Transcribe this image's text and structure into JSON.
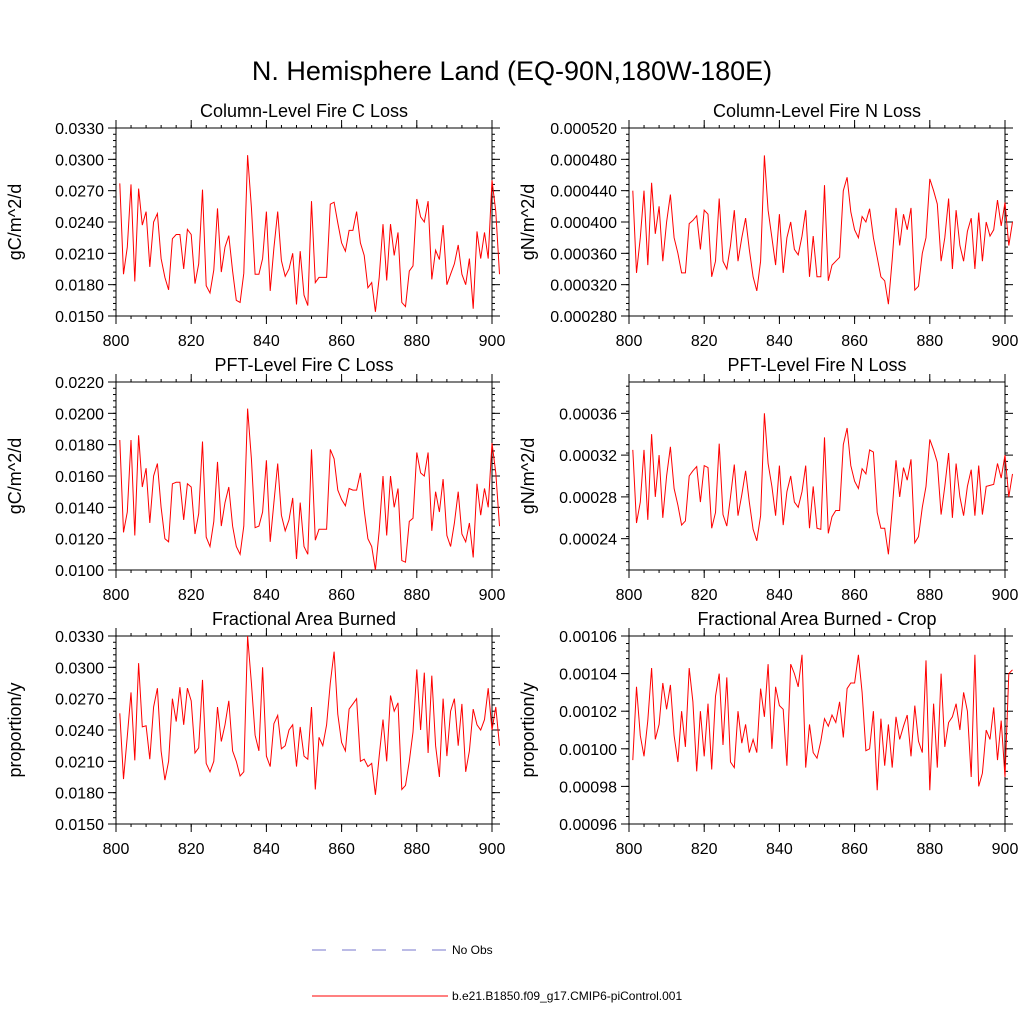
{
  "figure_title": "N. Hemisphere Land (EQ-90N,180W-180E)",
  "legend": {
    "obs_label": "No Obs",
    "obs_color": "#7777cc",
    "model_label": "b.e21.B1850.f09_g17.CMIP6-piControl.001",
    "model_color": "#ff0000"
  },
  "chart_data": [
    {
      "type": "line",
      "title": "Column-Level Fire C Loss",
      "xlabel": "",
      "ylabel": "gC/m^2/d",
      "xlim": [
        800,
        900
      ],
      "ylim": [
        0.015,
        0.033
      ],
      "xticks": [
        800,
        820,
        840,
        860,
        880,
        900
      ],
      "yticks": [
        0.015,
        0.018,
        0.021,
        0.024,
        0.027,
        0.03,
        0.033
      ],
      "ytick_labels": [
        "0.0150",
        "0.0180",
        "0.0210",
        "0.0240",
        "0.0270",
        "0.0300",
        "0.0330"
      ],
      "x_start": 801,
      "x_step": 1,
      "series": [
        {
          "name": "b.e21.B1850.f09_g17.CMIP6-piControl.001",
          "values": [
            0.0277,
            0.019,
            0.0216,
            0.0276,
            0.0183,
            0.0272,
            0.0237,
            0.025,
            0.0197,
            0.024,
            0.0248,
            0.0205,
            0.0187,
            0.0175,
            0.0224,
            0.0228,
            0.0228,
            0.0195,
            0.0233,
            0.0228,
            0.0181,
            0.02,
            0.0271,
            0.0179,
            0.0172,
            0.0194,
            0.0253,
            0.0192,
            0.0216,
            0.0227,
            0.0193,
            0.0165,
            0.0163,
            0.0191,
            0.0304,
            0.0254,
            0.019,
            0.019,
            0.0205,
            0.025,
            0.0174,
            0.0215,
            0.025,
            0.0203,
            0.0188,
            0.0195,
            0.021,
            0.0161,
            0.0212,
            0.017,
            0.016,
            0.026,
            0.0182,
            0.0187,
            0.0187,
            0.0187,
            0.0257,
            0.0259,
            0.0239,
            0.022,
            0.0212,
            0.0232,
            0.0232,
            0.025,
            0.022,
            0.0208,
            0.0177,
            0.0182,
            0.0154,
            0.0187,
            0.0238,
            0.0184,
            0.0238,
            0.0208,
            0.023,
            0.0163,
            0.0159,
            0.0193,
            0.0198,
            0.0262,
            0.0245,
            0.024,
            0.026,
            0.0185,
            0.0213,
            0.0204,
            0.0237,
            0.018,
            0.019,
            0.02,
            0.0218,
            0.019,
            0.018,
            0.0205,
            0.0157,
            0.0231,
            0.0205,
            0.023,
            0.0205,
            0.028,
            0.025,
            0.019
          ]
        }
      ]
    },
    {
      "type": "line",
      "title": "Column-Level Fire N Loss",
      "xlabel": "",
      "ylabel": "gN/m^2/d",
      "xlim": [
        800,
        900
      ],
      "ylim": [
        0.00028,
        0.00052
      ],
      "xticks": [
        800,
        820,
        840,
        860,
        880,
        900
      ],
      "yticks": [
        0.00028,
        0.00032,
        0.00036,
        0.0004,
        0.00044,
        0.00048,
        0.00052
      ],
      "ytick_labels": [
        "0.000280",
        "0.000320",
        "0.000360",
        "0.000400",
        "0.000440",
        "0.000480",
        "0.000520"
      ],
      "x_start": 801,
      "x_step": 1,
      "series": [
        {
          "name": "b.e21.B1850.f09_g17.CMIP6-piControl.001",
          "values": [
            0.00044,
            0.000335,
            0.00038,
            0.00044,
            0.000345,
            0.00045,
            0.000385,
            0.00042,
            0.00035,
            0.0004,
            0.000435,
            0.00038,
            0.00036,
            0.000335,
            0.000335,
            0.000398,
            0.000402,
            0.000408,
            0.000365,
            0.000415,
            0.00041,
            0.00033,
            0.00035,
            0.00043,
            0.00035,
            0.00034,
            0.00037,
            0.000415,
            0.00035,
            0.00038,
            0.000405,
            0.000365,
            0.00033,
            0.000312,
            0.00035,
            0.000485,
            0.000415,
            0.00038,
            0.000345,
            0.00041,
            0.000335,
            0.00038,
            0.0004,
            0.000365,
            0.000358,
            0.000382,
            0.000415,
            0.00033,
            0.000382,
            0.00033,
            0.00033,
            0.000447,
            0.000325,
            0.000345,
            0.00035,
            0.000355,
            0.00044,
            0.000457,
            0.000413,
            0.00039,
            0.00038,
            0.000407,
            0.0004,
            0.000417,
            0.00038,
            0.000355,
            0.00033,
            0.000325,
            0.000295,
            0.000352,
            0.000418,
            0.00037,
            0.00041,
            0.00039,
            0.000418,
            0.000313,
            0.000318,
            0.00036,
            0.00038,
            0.000455,
            0.00044,
            0.000423,
            0.00035,
            0.00038,
            0.00043,
            0.00034,
            0.000415,
            0.00037,
            0.00035,
            0.000388,
            0.000405,
            0.00034,
            0.000412,
            0.00035,
            0.0004,
            0.000382,
            0.00039,
            0.000428,
            0.000395,
            0.000425,
            0.00037,
            0.0004
          ]
        }
      ]
    },
    {
      "type": "line",
      "title": "PFT-Level Fire C Loss",
      "xlabel": "",
      "ylabel": "gC/m^2/d",
      "xlim": [
        800,
        900
      ],
      "ylim": [
        0.01,
        0.022
      ],
      "xticks": [
        800,
        820,
        840,
        860,
        880,
        900
      ],
      "yticks": [
        0.01,
        0.012,
        0.014,
        0.016,
        0.018,
        0.02,
        0.022
      ],
      "ytick_labels": [
        "0.0100",
        "0.0120",
        "0.0140",
        "0.0160",
        "0.0180",
        "0.0200",
        "0.0220"
      ],
      "x_start": 801,
      "x_step": 1,
      "series": [
        {
          "name": "b.e21.B1850.f09_g17.CMIP6-piControl.001",
          "values": [
            0.0183,
            0.0124,
            0.0137,
            0.0183,
            0.0122,
            0.0186,
            0.0153,
            0.0165,
            0.013,
            0.016,
            0.0168,
            0.014,
            0.012,
            0.0118,
            0.0155,
            0.0156,
            0.0156,
            0.0132,
            0.0155,
            0.0153,
            0.0123,
            0.0136,
            0.0182,
            0.0121,
            0.0115,
            0.0131,
            0.0169,
            0.0128,
            0.0143,
            0.0153,
            0.0128,
            0.0115,
            0.011,
            0.0128,
            0.0203,
            0.0171,
            0.0127,
            0.0128,
            0.0137,
            0.017,
            0.0118,
            0.0143,
            0.0168,
            0.0135,
            0.0125,
            0.0132,
            0.0146,
            0.0107,
            0.0143,
            0.0115,
            0.011,
            0.0177,
            0.0119,
            0.0126,
            0.0126,
            0.0126,
            0.0177,
            0.0171,
            0.0151,
            0.0145,
            0.0141,
            0.0152,
            0.0151,
            0.0151,
            0.0162,
            0.0138,
            0.012,
            0.0115,
            0.01,
            0.0125,
            0.016,
            0.0122,
            0.016,
            0.014,
            0.0152,
            0.0106,
            0.0105,
            0.0131,
            0.0133,
            0.0175,
            0.0162,
            0.016,
            0.0175,
            0.0125,
            0.015,
            0.0137,
            0.0158,
            0.0122,
            0.0115,
            0.013,
            0.015,
            0.0123,
            0.0118,
            0.013,
            0.0108,
            0.0155,
            0.0135,
            0.0152,
            0.014,
            0.0181,
            0.0162,
            0.0128
          ]
        }
      ]
    },
    {
      "type": "line",
      "title": "PFT-Level Fire N Loss",
      "xlabel": "",
      "ylabel": "gN/m^2/d",
      "xlim": [
        800,
        900
      ],
      "ylim": [
        0.00021,
        0.00039
      ],
      "xticks": [
        800,
        820,
        840,
        860,
        880,
        900
      ],
      "yticks": [
        0.00024,
        0.00028,
        0.00032,
        0.00036
      ],
      "ytick_labels": [
        "0.00024",
        "0.00028",
        "0.00032",
        "0.00036"
      ],
      "x_start": 801,
      "x_step": 1,
      "series": [
        {
          "name": "b.e21.B1850.f09_g17.CMIP6-piControl.001",
          "values": [
            0.000325,
            0.000255,
            0.000275,
            0.000325,
            0.000258,
            0.00034,
            0.00028,
            0.00032,
            0.00026,
            0.0003,
            0.000328,
            0.000288,
            0.000272,
            0.000253,
            0.000257,
            0.0003,
            0.000305,
            0.000309,
            0.000275,
            0.00031,
            0.000308,
            0.00025,
            0.000265,
            0.000331,
            0.000263,
            0.000252,
            0.00028,
            0.000311,
            0.000262,
            0.000282,
            0.000305,
            0.000275,
            0.000249,
            0.000238,
            0.000262,
            0.00036,
            0.000312,
            0.00029,
            0.000262,
            0.00031,
            0.000253,
            0.000285,
            0.0003,
            0.000275,
            0.00027,
            0.000285,
            0.00031,
            0.00025,
            0.00029,
            0.00025,
            0.000249,
            0.000337,
            0.000245,
            0.000261,
            0.000267,
            0.000267,
            0.00033,
            0.000346,
            0.00031,
            0.000295,
            0.000288,
            0.000307,
            0.000302,
            0.000325,
            0.000323,
            0.000265,
            0.00025,
            0.00025,
            0.000225,
            0.000268,
            0.000315,
            0.00028,
            0.000308,
            0.000296,
            0.000316,
            0.000236,
            0.000242,
            0.00027,
            0.00029,
            0.000335,
            0.000325,
            0.000313,
            0.000263,
            0.00029,
            0.000322,
            0.00026,
            0.000312,
            0.00028,
            0.000262,
            0.00029,
            0.000306,
            0.000262,
            0.00031,
            0.000263,
            0.00029,
            0.000291,
            0.000292,
            0.000312,
            0.000298,
            0.00032,
            0.00028,
            0.000302
          ]
        }
      ]
    },
    {
      "type": "line",
      "title": "Fractional Area Burned",
      "xlabel": "",
      "ylabel": "proportion/y",
      "xlim": [
        800,
        900
      ],
      "ylim": [
        0.015,
        0.033
      ],
      "xticks": [
        800,
        820,
        840,
        860,
        880,
        900
      ],
      "yticks": [
        0.015,
        0.018,
        0.021,
        0.024,
        0.027,
        0.03,
        0.033
      ],
      "ytick_labels": [
        "0.0150",
        "0.0180",
        "0.0210",
        "0.0240",
        "0.0270",
        "0.0300",
        "0.0330"
      ],
      "x_start": 801,
      "x_step": 1,
      "series": [
        {
          "name": "b.e21.B1850.f09_g17.CMIP6-piControl.001",
          "values": [
            0.0256,
            0.0193,
            0.0234,
            0.0276,
            0.0211,
            0.0304,
            0.0243,
            0.0244,
            0.0212,
            0.0262,
            0.028,
            0.022,
            0.0192,
            0.021,
            0.027,
            0.0248,
            0.0281,
            0.0245,
            0.028,
            0.0268,
            0.0218,
            0.0223,
            0.0288,
            0.0208,
            0.02,
            0.021,
            0.0262,
            0.0229,
            0.0245,
            0.0268,
            0.022,
            0.021,
            0.0196,
            0.02,
            0.033,
            0.0285,
            0.0235,
            0.022,
            0.03,
            0.0215,
            0.0205,
            0.0246,
            0.0254,
            0.0222,
            0.0225,
            0.024,
            0.0245,
            0.0205,
            0.0243,
            0.0215,
            0.0212,
            0.0262,
            0.0183,
            0.0233,
            0.0225,
            0.0245,
            0.0285,
            0.0315,
            0.0255,
            0.0228,
            0.022,
            0.026,
            0.0265,
            0.027,
            0.021,
            0.0212,
            0.0205,
            0.0208,
            0.0178,
            0.0215,
            0.025,
            0.021,
            0.0273,
            0.0258,
            0.0266,
            0.0183,
            0.0187,
            0.021,
            0.0238,
            0.0298,
            0.024,
            0.0295,
            0.0218,
            0.0292,
            0.0225,
            0.0195,
            0.027,
            0.0215,
            0.0258,
            0.027,
            0.0225,
            0.0265,
            0.02,
            0.022,
            0.026,
            0.0245,
            0.024,
            0.025,
            0.028,
            0.024,
            0.0262,
            0.0225
          ]
        }
      ]
    },
    {
      "type": "line",
      "title": "Fractional Area Burned - Crop",
      "xlabel": "",
      "ylabel": "proportion/y",
      "xlim": [
        800,
        900
      ],
      "ylim": [
        0.00096,
        0.00106
      ],
      "xticks": [
        800,
        820,
        840,
        860,
        880,
        900
      ],
      "yticks": [
        0.00096,
        0.00098,
        0.001,
        0.00102,
        0.00104,
        0.00106
      ],
      "ytick_labels": [
        "0.00096",
        "0.00098",
        "0.00100",
        "0.00102",
        "0.00104",
        "0.00106"
      ],
      "x_start": 801,
      "x_step": 1,
      "series": [
        {
          "name": "b.e21.B1850.f09_g17.CMIP6-piControl.001",
          "values": [
            0.000994,
            0.001033,
            0.001007,
            0.000996,
            0.001015,
            0.001043,
            0.001005,
            0.001013,
            0.001035,
            0.001021,
            0.001034,
            0.001007,
            0.000993,
            0.00102,
            0.001001,
            0.001043,
            0.001025,
            0.000988,
            0.00102,
            0.000996,
            0.001024,
            0.000989,
            0.001028,
            0.00104,
            0.001002,
            0.001038,
            0.000993,
            0.00099,
            0.00102,
            0.001003,
            0.001013,
            0.000998,
            0.001005,
            0.000998,
            0.001032,
            0.001017,
            0.001045,
            0.001,
            0.001033,
            0.001023,
            0.001021,
            0.000991,
            0.001045,
            0.00104,
            0.001033,
            0.00105,
            0.00099,
            0.001013,
            0.000998,
            0.000995,
            0.001004,
            0.001016,
            0.001012,
            0.001018,
            0.001014,
            0.001025,
            0.001006,
            0.001032,
            0.001035,
            0.001035,
            0.00105,
            0.00103,
            0.000999,
            0.001,
            0.00102,
            0.000978,
            0.001016,
            0.000991,
            0.001013,
            0.00099,
            0.001017,
            0.001005,
            0.001012,
            0.001018,
            0.000996,
            0.001023,
            0.001004,
            0.000998,
            0.001047,
            0.000978,
            0.001024,
            0.00099,
            0.00104,
            0.001001,
            0.001014,
            0.001017,
            0.001024,
            0.00101,
            0.00103,
            0.00102,
            0.000985,
            0.00105,
            0.00098,
            0.000987,
            0.00101,
            0.001005,
            0.001022,
            0.000994,
            0.001015,
            0.000985,
            0.00104,
            0.001042
          ]
        }
      ]
    }
  ]
}
